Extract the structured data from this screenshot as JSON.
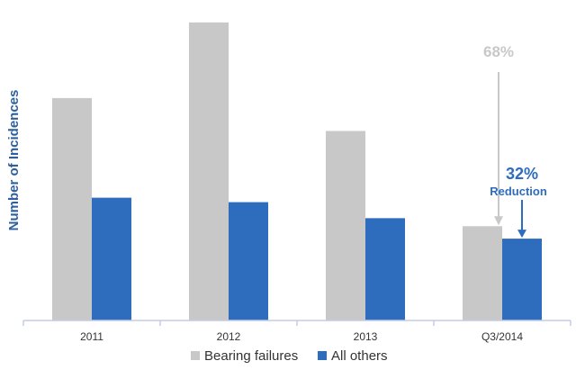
{
  "chart_data": {
    "type": "bar",
    "categories": [
      "2011",
      "2012",
      "2013",
      "Q3/2014"
    ],
    "series": [
      {
        "name": "Bearing failures",
        "values": [
          250,
          335,
          213,
          106
        ],
        "color": "#c8c8c8"
      },
      {
        "name": "All others",
        "values": [
          138,
          133,
          115,
          92
        ],
        "color": "#2e6dbd"
      }
    ],
    "title": "",
    "xlabel": "",
    "ylabel": "Number of Incidences",
    "ylim": [
      0,
      340
    ],
    "grid": false,
    "legend": "bottom",
    "annotations": [
      {
        "text": "68%",
        "series": "Bearing failures",
        "category": "Q3/2014",
        "color": "#c8c8c8"
      },
      {
        "text": "32%",
        "subtext": "Reduction",
        "series": "All others",
        "category": "Q3/2014",
        "color": "#2e6dbd"
      }
    ]
  }
}
